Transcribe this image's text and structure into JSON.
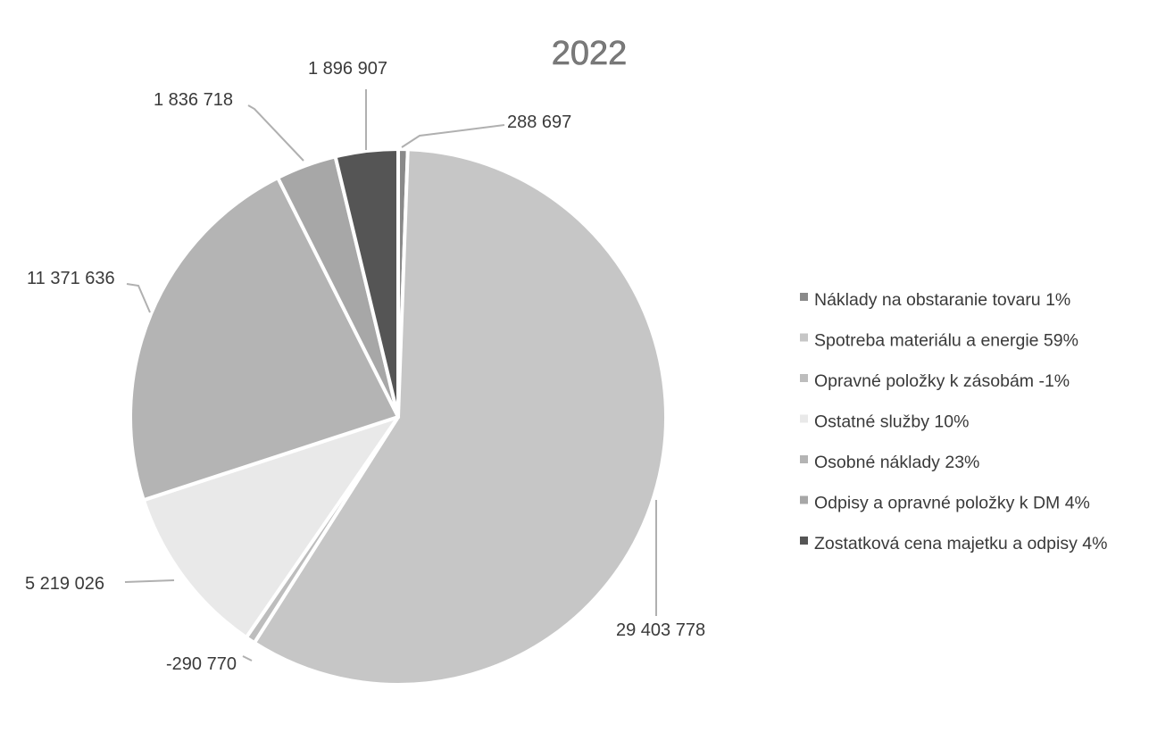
{
  "chart_data": {
    "type": "pie",
    "title": "2022",
    "legend_placement": "right",
    "slices": [
      {
        "legend": "Náklady na obstaranie tovaru 1%",
        "value": 288697,
        "label": "288 697",
        "color": "#8a8a8a"
      },
      {
        "legend": "Spotreba materiálu a energie 59%",
        "value": 29403778,
        "label": "29 403 778",
        "color": "#c6c6c6"
      },
      {
        "legend": "Opravné položky k zásobám -1%",
        "value": -290770,
        "label": "-290 770",
        "color": "#bdbdbd"
      },
      {
        "legend": "Ostatné služby 10%",
        "value": 5219026,
        "label": "5 219 026",
        "color": "#e9e9e9"
      },
      {
        "legend": "Osobné náklady 23%",
        "value": 11371636,
        "label": "11 371 636",
        "color": "#b4b4b4"
      },
      {
        "legend": "Odpisy a opravné položky k DM 4%",
        "value": 1836718,
        "label": "1 836 718",
        "color": "#a7a7a7"
      },
      {
        "legend": "Zostatková cena majetku a odpisy 4%",
        "value": 1896907,
        "label": "1 896 907",
        "color": "#555555"
      }
    ]
  }
}
